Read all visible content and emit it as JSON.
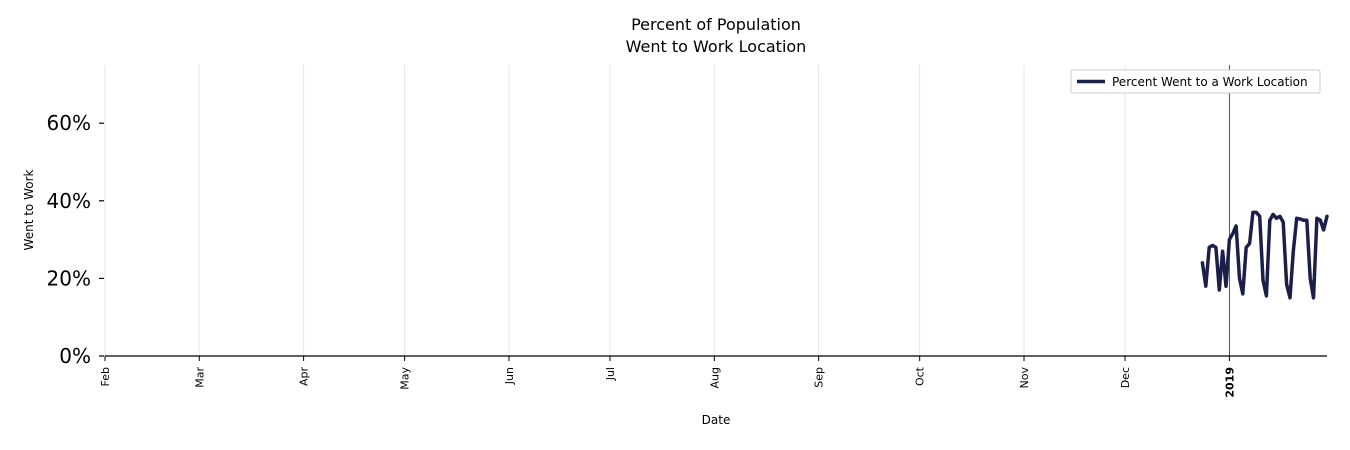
{
  "chart_data": {
    "type": "line",
    "title": [
      "Percent of Population",
      "Went to Work Location"
    ],
    "xlabel": "Date",
    "ylabel": "Went to Work",
    "x_range": [
      "2018-02-01",
      "2019-01-30"
    ],
    "ylim": [
      0,
      75
    ],
    "y_ticks": [
      0,
      20,
      40,
      60
    ],
    "y_tick_labels": [
      "0%",
      "20%",
      "40%",
      "60%"
    ],
    "x_ticks": [
      {
        "date": "2018-02-01",
        "label": "Feb",
        "bold": false
      },
      {
        "date": "2018-03-01",
        "label": "Mar",
        "bold": false
      },
      {
        "date": "2018-04-01",
        "label": "Apr",
        "bold": false
      },
      {
        "date": "2018-05-01",
        "label": "May",
        "bold": false
      },
      {
        "date": "2018-06-01",
        "label": "Jun",
        "bold": false
      },
      {
        "date": "2018-07-01",
        "label": "Jul",
        "bold": false
      },
      {
        "date": "2018-08-01",
        "label": "Aug",
        "bold": false
      },
      {
        "date": "2018-09-01",
        "label": "Sep",
        "bold": false
      },
      {
        "date": "2018-10-01",
        "label": "Oct",
        "bold": false
      },
      {
        "date": "2018-11-01",
        "label": "Nov",
        "bold": false
      },
      {
        "date": "2018-12-01",
        "label": "Dec",
        "bold": false
      },
      {
        "date": "2019-01-01",
        "label": "2019",
        "bold": true
      }
    ],
    "vline_date": "2019-01-01",
    "grid": {
      "x": true,
      "y": false
    },
    "legend_position": "top-right",
    "series": [
      {
        "name": "Percent Went to a Work Location",
        "color": "#1c1f4a",
        "x": [
          "2018-12-24",
          "2018-12-25",
          "2018-12-26",
          "2018-12-27",
          "2018-12-28",
          "2018-12-29",
          "2018-12-30",
          "2018-12-31",
          "2019-01-01",
          "2019-01-02",
          "2019-01-03",
          "2019-01-04",
          "2019-01-05",
          "2019-01-06",
          "2019-01-07",
          "2019-01-08",
          "2019-01-09",
          "2019-01-10",
          "2019-01-11",
          "2019-01-12",
          "2019-01-13",
          "2019-01-14",
          "2019-01-15",
          "2019-01-16",
          "2019-01-17",
          "2019-01-18",
          "2019-01-19",
          "2019-01-20",
          "2019-01-21",
          "2019-01-22",
          "2019-01-23",
          "2019-01-24",
          "2019-01-25",
          "2019-01-26",
          "2019-01-27",
          "2019-01-28",
          "2019-01-29",
          "2019-01-30"
        ],
        "y": [
          24,
          18,
          28,
          28.5,
          28,
          17,
          27,
          18,
          30,
          31.5,
          33.5,
          20,
          16,
          28,
          29,
          37,
          37,
          36,
          19.5,
          15.5,
          35,
          36.5,
          35.5,
          36,
          34.5,
          18.5,
          15,
          27,
          35.5,
          35.3,
          35,
          35,
          20,
          15,
          35.5,
          35,
          32.5,
          36
        ]
      }
    ]
  }
}
